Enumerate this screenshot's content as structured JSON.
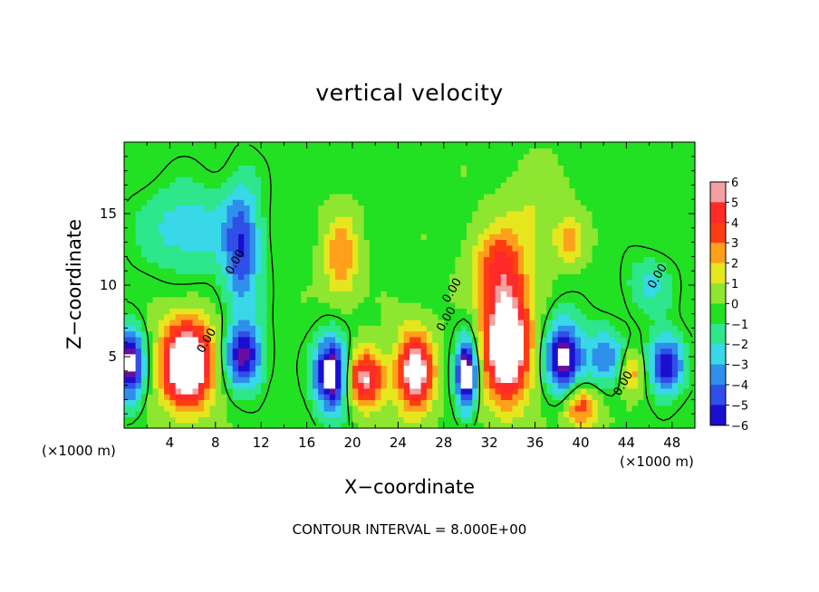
{
  "chart_data": {
    "type": "heatmap",
    "title": "vertical velocity",
    "xlabel": "X−coordinate",
    "ylabel": "Z−coordinate",
    "x_unit_label": "(×1000 m)",
    "x_unit_label_right": "(×1000 m)",
    "x_ticks": [
      "4",
      "8",
      "12",
      "16",
      "20",
      "24",
      "28",
      "32",
      "36",
      "40",
      "44",
      "48"
    ],
    "y_ticks": [
      "5",
      "10",
      "15"
    ],
    "xlim": [
      0,
      50
    ],
    "ylim": [
      0,
      20
    ],
    "colorbar_ticks": [
      "6",
      "5",
      "4",
      "3",
      "2",
      "1",
      "0",
      "−1",
      "−2",
      "−3",
      "−4",
      "−5",
      "−6"
    ],
    "colorbar_range": [
      -6,
      6
    ],
    "contour_label": "0.00",
    "contour_interval_text": "CONTOUR INTERVAL = 8.000E+00",
    "blobs": [
      {
        "x": 5.5,
        "z": 4.5,
        "sx": 2.2,
        "sz": 3.0,
        "w": 9
      },
      {
        "x": 33.5,
        "z": 6.0,
        "sx": 2.0,
        "sz": 4.0,
        "w": 9
      },
      {
        "x": 32.8,
        "z": 11.5,
        "sx": 2.3,
        "sz": 2.5,
        "w": 3.5
      },
      {
        "x": 18.2,
        "z": 3.8,
        "sx": 1.5,
        "sz": 2.5,
        "w": -8
      },
      {
        "x": 30.0,
        "z": 3.8,
        "sx": 0.9,
        "sz": 2.5,
        "w": -8
      },
      {
        "x": 38.5,
        "z": 5.0,
        "sx": 1.5,
        "sz": 2.5,
        "w": -7
      },
      {
        "x": 0.5,
        "z": 4.5,
        "sx": 1.2,
        "sz": 2.5,
        "w": -7
      },
      {
        "x": 47.5,
        "z": 4.5,
        "sx": 1.5,
        "sz": 2.0,
        "w": -6
      },
      {
        "x": 10.5,
        "z": 5.0,
        "sx": 1.6,
        "sz": 2.2,
        "w": -6
      },
      {
        "x": 10.3,
        "z": 12.5,
        "sx": 1.6,
        "sz": 4.5,
        "w": -4.5
      },
      {
        "x": 5.5,
        "z": 14.0,
        "sx": 4.0,
        "sz": 3.0,
        "w": -2.5
      },
      {
        "x": 21.0,
        "z": 3.5,
        "sx": 1.8,
        "sz": 2.0,
        "w": 6
      },
      {
        "x": 25.5,
        "z": 4.0,
        "sx": 1.6,
        "sz": 2.8,
        "w": 7
      },
      {
        "x": 40.0,
        "z": 1.5,
        "sx": 1.5,
        "sz": 1.5,
        "w": 4
      },
      {
        "x": 44.5,
        "z": 4.0,
        "sx": 1.0,
        "sz": 1.5,
        "w": 3
      },
      {
        "x": 19.0,
        "z": 12.0,
        "sx": 1.5,
        "sz": 3.0,
        "w": 3
      },
      {
        "x": 39.0,
        "z": 13.0,
        "sx": 1.2,
        "sz": 1.5,
        "w": 2.5
      },
      {
        "x": 46.0,
        "z": 10.0,
        "sx": 2.0,
        "sz": 2.0,
        "w": -2
      },
      {
        "x": 42.0,
        "z": 5.0,
        "sx": 1.8,
        "sz": 2.0,
        "w": -3.5
      },
      {
        "x": 36.0,
        "z": 15.0,
        "sx": 3.0,
        "sz": 3.0,
        "w": 1.2
      }
    ],
    "color_scale": [
      "#6a0d9e",
      "#1a0fd0",
      "#2f4fe8",
      "#2f8fea",
      "#38d8e8",
      "#2ee68c",
      "#22e022",
      "#8ee630",
      "#e6e61e",
      "#ffa01c",
      "#ff3c14",
      "#ff2a2a",
      "#f3a0a0"
    ],
    "colors": {
      "background": "#ffffff",
      "axis": "#000000",
      "contour": "#000000"
    }
  }
}
